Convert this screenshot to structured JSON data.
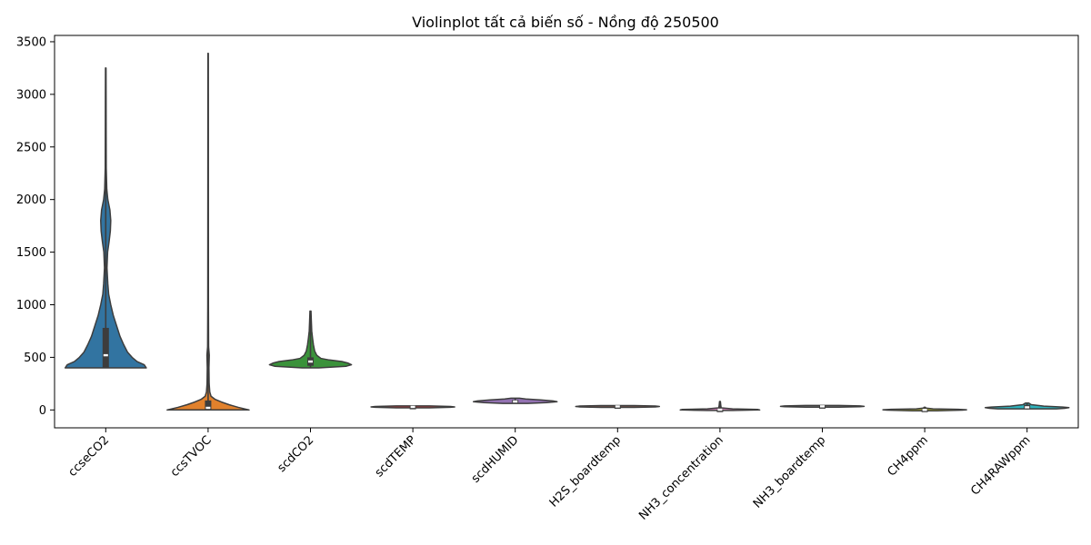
{
  "chart_data": {
    "type": "violin",
    "title": "Violinplot tất cả biến số - Nồng độ 250500",
    "xlabel": "",
    "ylabel": "",
    "ylim": [
      -170,
      3560
    ],
    "yticks": [
      0,
      500,
      1000,
      1500,
      2000,
      2500,
      3000,
      3500
    ],
    "yticklabels": [
      "0",
      "500",
      "1000",
      "1500",
      "2000",
      "2500",
      "3000",
      "3500"
    ],
    "grid": false,
    "colors": {
      "ccseCO2": "#3274a1",
      "ccsTVOC": "#e1812c",
      "scdCO2": "#3a923a",
      "scdTEMP": "#c03d3e",
      "scdHUMID": "#9372b2",
      "H2S_boardtemp": "#845b53",
      "NH3_concentration": "#d684bd",
      "NH3_boardtemp": "#7f7f7f",
      "CH4ppm": "#a9aa35",
      "CH4RAWppm": "#2eb4be",
      "outline": "#3d3d3d",
      "median": "#ffffff"
    },
    "series": [
      {
        "name": "ccseCO2",
        "min": 400,
        "q1": 400,
        "median": 520,
        "q3": 780,
        "max": 3250,
        "profile": [
          [
            400,
            0.97
          ],
          [
            430,
            0.92
          ],
          [
            460,
            0.75
          ],
          [
            500,
            0.63
          ],
          [
            550,
            0.52
          ],
          [
            620,
            0.43
          ],
          [
            700,
            0.34
          ],
          [
            800,
            0.26
          ],
          [
            900,
            0.18
          ],
          [
            1000,
            0.12
          ],
          [
            1100,
            0.07
          ],
          [
            1200,
            0.05
          ],
          [
            1350,
            0.03
          ],
          [
            1500,
            0.045
          ],
          [
            1600,
            0.08
          ],
          [
            1700,
            0.11
          ],
          [
            1800,
            0.12
          ],
          [
            1900,
            0.1
          ],
          [
            2000,
            0.05
          ],
          [
            2100,
            0.025
          ],
          [
            2300,
            0.012
          ],
          [
            2600,
            0.01
          ],
          [
            3000,
            0.008
          ],
          [
            3250,
            0.006
          ]
        ]
      },
      {
        "name": "ccsTVOC",
        "min": 0,
        "q1": 0,
        "median": 20,
        "q3": 90,
        "max": 3390,
        "profile": [
          [
            0,
            0.98
          ],
          [
            25,
            0.72
          ],
          [
            50,
            0.5
          ],
          [
            75,
            0.32
          ],
          [
            100,
            0.17
          ],
          [
            130,
            0.07
          ],
          [
            170,
            0.04
          ],
          [
            250,
            0.025
          ],
          [
            400,
            0.02
          ],
          [
            520,
            0.028
          ],
          [
            600,
            0.012
          ],
          [
            1000,
            0.008
          ],
          [
            2000,
            0.006
          ],
          [
            3000,
            0.005
          ],
          [
            3390,
            0.004
          ]
        ]
      },
      {
        "name": "scdCO2",
        "min": 400,
        "q1": 420,
        "median": 460,
        "q3": 500,
        "max": 940,
        "profile": [
          [
            400,
            0.2
          ],
          [
            415,
            0.85
          ],
          [
            430,
            0.98
          ],
          [
            445,
            0.9
          ],
          [
            460,
            0.75
          ],
          [
            475,
            0.45
          ],
          [
            490,
            0.25
          ],
          [
            520,
            0.15
          ],
          [
            560,
            0.1
          ],
          [
            620,
            0.07
          ],
          [
            680,
            0.05
          ],
          [
            750,
            0.03
          ],
          [
            850,
            0.02
          ],
          [
            940,
            0.012
          ]
        ]
      },
      {
        "name": "scdTEMP",
        "min": 20,
        "q1": 26,
        "median": 29,
        "q3": 32,
        "max": 38,
        "profile": [
          [
            20,
            0.4
          ],
          [
            25,
            0.9
          ],
          [
            29,
            1.0
          ],
          [
            33,
            0.9
          ],
          [
            38,
            0.4
          ]
        ]
      },
      {
        "name": "scdHUMID",
        "min": 60,
        "q1": 70,
        "median": 80,
        "q3": 95,
        "max": 112,
        "profile": [
          [
            62,
            0.3
          ],
          [
            70,
            0.75
          ],
          [
            78,
            1.0
          ],
          [
            86,
            0.9
          ],
          [
            95,
            0.6
          ],
          [
            104,
            0.25
          ],
          [
            112,
            0.1
          ]
        ]
      },
      {
        "name": "H2S_boardtemp",
        "min": 24,
        "q1": 30,
        "median": 33,
        "q3": 37,
        "max": 42,
        "profile": [
          [
            24,
            0.4
          ],
          [
            29,
            0.9
          ],
          [
            33,
            1.0
          ],
          [
            37,
            0.9
          ],
          [
            42,
            0.4
          ]
        ]
      },
      {
        "name": "NH3_concentration",
        "min": 0,
        "q1": 0,
        "median": 2,
        "q3": 5,
        "max": 80,
        "profile": [
          [
            -5,
            0.3
          ],
          [
            0,
            0.95
          ],
          [
            5,
            0.9
          ],
          [
            10,
            0.3
          ],
          [
            20,
            0.03
          ],
          [
            40,
            0.02
          ],
          [
            60,
            0.015
          ],
          [
            80,
            0.01
          ]
        ]
      },
      {
        "name": "NH3_boardtemp",
        "min": 26,
        "q1": 31,
        "median": 34,
        "q3": 38,
        "max": 43,
        "profile": [
          [
            26,
            0.4
          ],
          [
            31,
            0.9
          ],
          [
            34,
            1.0
          ],
          [
            38,
            0.9
          ],
          [
            43,
            0.4
          ]
        ]
      },
      {
        "name": "CH4ppm",
        "min": -5,
        "q1": -2,
        "median": 0,
        "q3": 5,
        "max": 25,
        "profile": [
          [
            -8,
            0.3
          ],
          [
            -2,
            0.9
          ],
          [
            2,
            1.0
          ],
          [
            6,
            0.8
          ],
          [
            10,
            0.2
          ],
          [
            18,
            0.03
          ],
          [
            25,
            0.015
          ]
        ]
      },
      {
        "name": "CH4RAWppm",
        "min": 5,
        "q1": 10,
        "median": 25,
        "q3": 50,
        "max": 65,
        "profile": [
          [
            10,
            0.7
          ],
          [
            16,
            0.9
          ],
          [
            22,
            1.0
          ],
          [
            28,
            0.85
          ],
          [
            36,
            0.4
          ],
          [
            50,
            0.1
          ],
          [
            65,
            0.04
          ]
        ]
      }
    ]
  }
}
